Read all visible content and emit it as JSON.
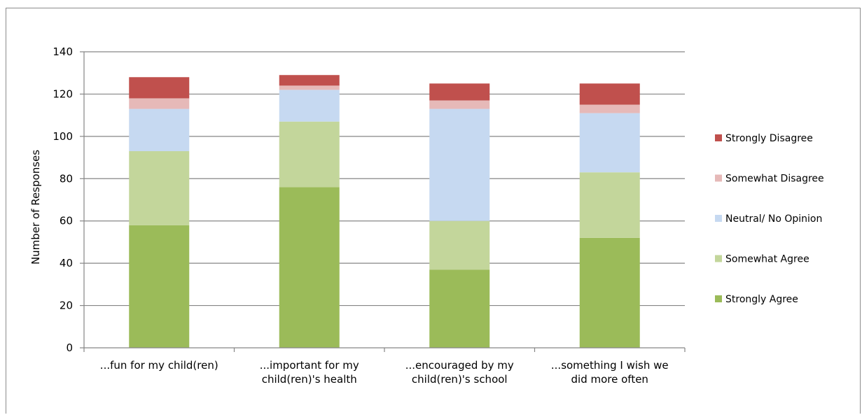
{
  "chart_data": {
    "type": "bar",
    "stacked": true,
    "ylabel": "Number of Responses",
    "ylim": [
      0,
      140
    ],
    "yticks": [
      0,
      20,
      40,
      60,
      80,
      100,
      120,
      140
    ],
    "grid": true,
    "legend_position": "right",
    "categories": [
      [
        "...fun for my child(ren)"
      ],
      [
        "...important for my",
        "child(ren)'s health"
      ],
      [
        "...encouraged by my",
        "child(ren)'s school"
      ],
      [
        "...something I wish we",
        "did more often"
      ]
    ],
    "series": [
      {
        "name": "Strongly Agree",
        "color": "#9bbb59",
        "values": [
          58,
          76,
          37,
          52
        ]
      },
      {
        "name": "Somewhat Agree",
        "color": "#c3d69b",
        "values": [
          35,
          31,
          23,
          31
        ]
      },
      {
        "name": "Neutral/ No Opinion",
        "color": "#c6d9f1",
        "values": [
          20,
          15,
          53,
          28
        ]
      },
      {
        "name": "Somewhat Disagree",
        "color": "#e6b9b8",
        "values": [
          5,
          2,
          4,
          4
        ]
      },
      {
        "name": "Strongly Disagree",
        "color": "#c0504d",
        "values": [
          10,
          5,
          8,
          10
        ]
      }
    ]
  }
}
